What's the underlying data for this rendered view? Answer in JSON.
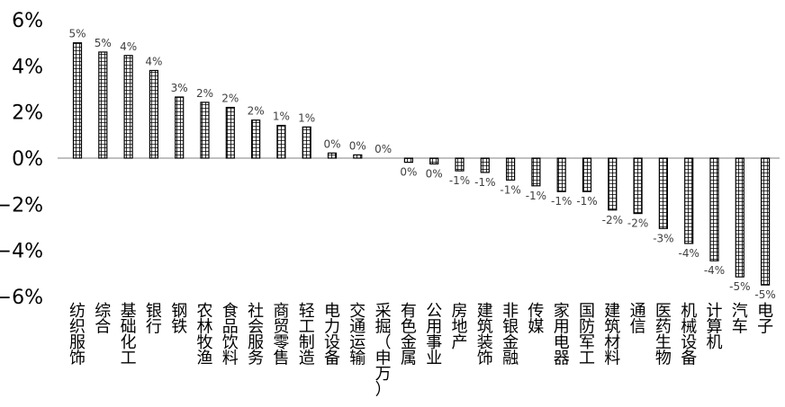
{
  "chart_data": {
    "type": "bar",
    "title": "",
    "xlabel": "",
    "ylabel": "",
    "ylim": [
      -6,
      6
    ],
    "yticks": [
      6,
      4,
      2,
      0,
      -2,
      -4,
      -6
    ],
    "ytick_labels": [
      "6%",
      "4%",
      "2%",
      "0%",
      "−2%",
      "−4%",
      "−6%"
    ],
    "grid": false,
    "legend": "none",
    "bar_fill": "hatched-grid",
    "bar_color": "#000000",
    "categories": [
      "纺织服饰",
      "综合",
      "基础化工",
      "银行",
      "钢铁",
      "农林牧渔",
      "食品饮料",
      "社会服务",
      "商贸零售",
      "轻工制造",
      "电力设备",
      "交通运输",
      "采掘（申万）",
      "有色金属",
      "公用事业",
      "房地产",
      "建筑装饰",
      "非银金融",
      "传媒",
      "家用电器",
      "国防军工",
      "建筑材料",
      "通信",
      "医药生物",
      "机械设备",
      "计算机",
      "汽车",
      "电子"
    ],
    "values": [
      5.0,
      4.6,
      4.45,
      3.8,
      2.65,
      2.42,
      2.2,
      1.65,
      1.42,
      1.35,
      0.22,
      0.14,
      0.0,
      -0.18,
      -0.25,
      -0.55,
      -0.62,
      -0.95,
      -1.2,
      -1.45,
      -1.45,
      -2.25,
      -2.4,
      -3.05,
      -3.7,
      -4.45,
      -5.15,
      -5.5
    ],
    "data_labels": [
      "5%",
      "5%",
      "4%",
      "4%",
      "3%",
      "2%",
      "2%",
      "2%",
      "1%",
      "1%",
      "0%",
      "0%",
      "0%",
      "0%",
      "0%",
      "-1%",
      "-1%",
      "-1%",
      "-1%",
      "-1%",
      "-1%",
      "-2%",
      "-2%",
      "-3%",
      "-4%",
      "-4%",
      "-5%",
      "-5%"
    ]
  }
}
